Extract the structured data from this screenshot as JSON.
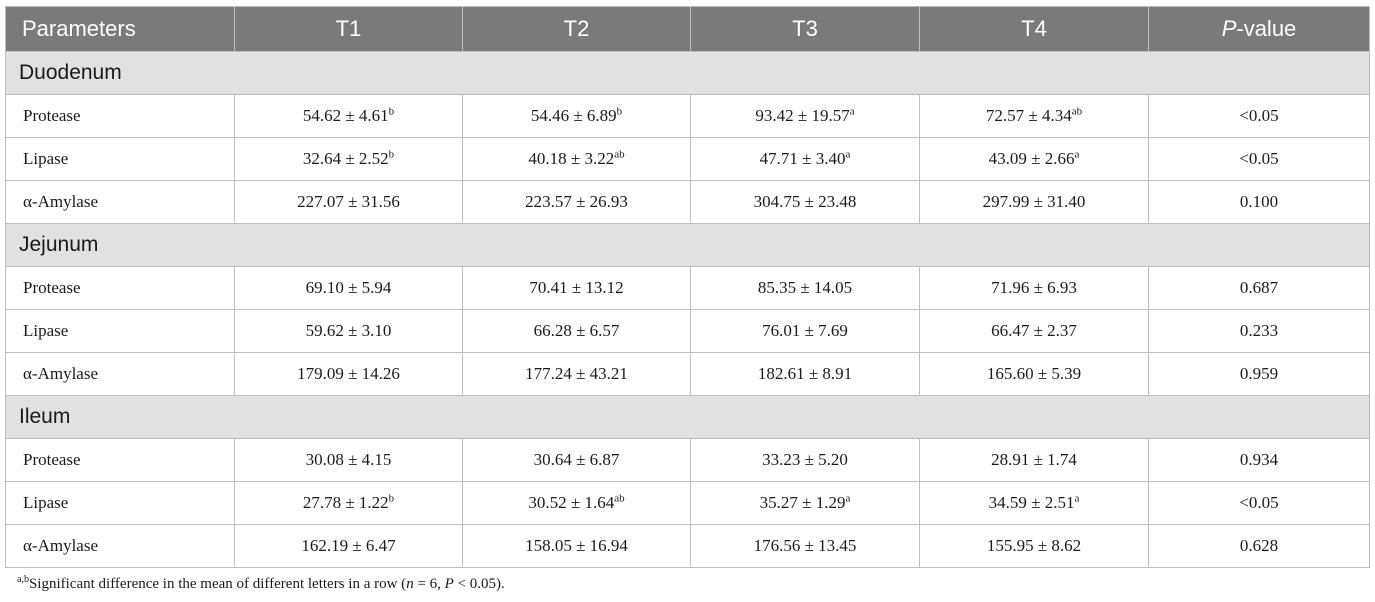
{
  "table": {
    "headers": {
      "col0": "Parameters",
      "col1": "T1",
      "col2": "T2",
      "col3": "T3",
      "col4": "T4",
      "col5_italic": "P",
      "col5_rest": "-value"
    },
    "sections": [
      {
        "name": "Duodenum",
        "rows": [
          {
            "label": "Protease",
            "t1": "54.62 ± 4.61",
            "t1_sup": "b",
            "t2": "54.46 ± 6.89",
            "t2_sup": "b",
            "t3": "93.42 ± 19.57",
            "t3_sup": "a",
            "t4": "72.57 ± 4.34",
            "t4_sup": "ab",
            "p": "<0.05"
          },
          {
            "label": "Lipase",
            "t1": "32.64 ± 2.52",
            "t1_sup": "b",
            "t2": "40.18 ± 3.22",
            "t2_sup": "ab",
            "t3": "47.71 ± 3.40",
            "t3_sup": "a",
            "t4": "43.09 ± 2.66",
            "t4_sup": "a",
            "p": "<0.05"
          },
          {
            "label": "α-Amylase",
            "t1": "227.07 ± 31.56",
            "t1_sup": "",
            "t2": "223.57 ± 26.93",
            "t2_sup": "",
            "t3": "304.75 ± 23.48",
            "t3_sup": "",
            "t4": "297.99 ± 31.40",
            "t4_sup": "",
            "p": "0.100"
          }
        ]
      },
      {
        "name": "Jejunum",
        "rows": [
          {
            "label": "Protease",
            "t1": "69.10 ± 5.94",
            "t1_sup": "",
            "t2": "70.41 ± 13.12",
            "t2_sup": "",
            "t3": "85.35 ± 14.05",
            "t3_sup": "",
            "t4": "71.96 ± 6.93",
            "t4_sup": "",
            "p": "0.687"
          },
          {
            "label": "Lipase",
            "t1": "59.62 ± 3.10",
            "t1_sup": "",
            "t2": "66.28 ± 6.57",
            "t2_sup": "",
            "t3": "76.01 ± 7.69",
            "t3_sup": "",
            "t4": "66.47 ± 2.37",
            "t4_sup": "",
            "p": "0.233"
          },
          {
            "label": "α-Amylase",
            "t1": "179.09 ± 14.26",
            "t1_sup": "",
            "t2": "177.24 ± 43.21",
            "t2_sup": "",
            "t3": "182.61 ± 8.91",
            "t3_sup": "",
            "t4": "165.60 ± 5.39",
            "t4_sup": "",
            "p": "0.959"
          }
        ]
      },
      {
        "name": "Ileum",
        "rows": [
          {
            "label": "Protease",
            "t1": "30.08 ± 4.15",
            "t1_sup": "",
            "t2": "30.64 ± 6.87",
            "t2_sup": "",
            "t3": "33.23 ± 5.20",
            "t3_sup": "",
            "t4": "28.91 ± 1.74",
            "t4_sup": "",
            "p": "0.934"
          },
          {
            "label": "Lipase",
            "t1": "27.78 ± 1.22",
            "t1_sup": "b",
            "t2": "30.52 ± 1.64",
            "t2_sup": "ab",
            "t3": "35.27 ± 1.29",
            "t3_sup": "a",
            "t4": "34.59 ± 2.51",
            "t4_sup": "a",
            "p": "<0.05"
          },
          {
            "label": "α-Amylase",
            "t1": "162.19 ± 6.47",
            "t1_sup": "",
            "t2": "158.05 ± 16.94",
            "t2_sup": "",
            "t3": "176.56 ± 13.45",
            "t3_sup": "",
            "t4": "155.95 ± 8.62",
            "t4_sup": "",
            "p": "0.628"
          }
        ]
      }
    ]
  },
  "footnote": {
    "sup": "a,b",
    "text_a": "Significant difference in the mean of different letters in a row (",
    "n_var": "n",
    "text_b": " = 6, ",
    "p_var": "P",
    "text_c": " < 0.05)."
  },
  "colors": {
    "header_bg": "#7a7a7a",
    "header_text": "#ffffff",
    "section_bg": "#e1e1e1",
    "border": "#bdbdbd"
  }
}
